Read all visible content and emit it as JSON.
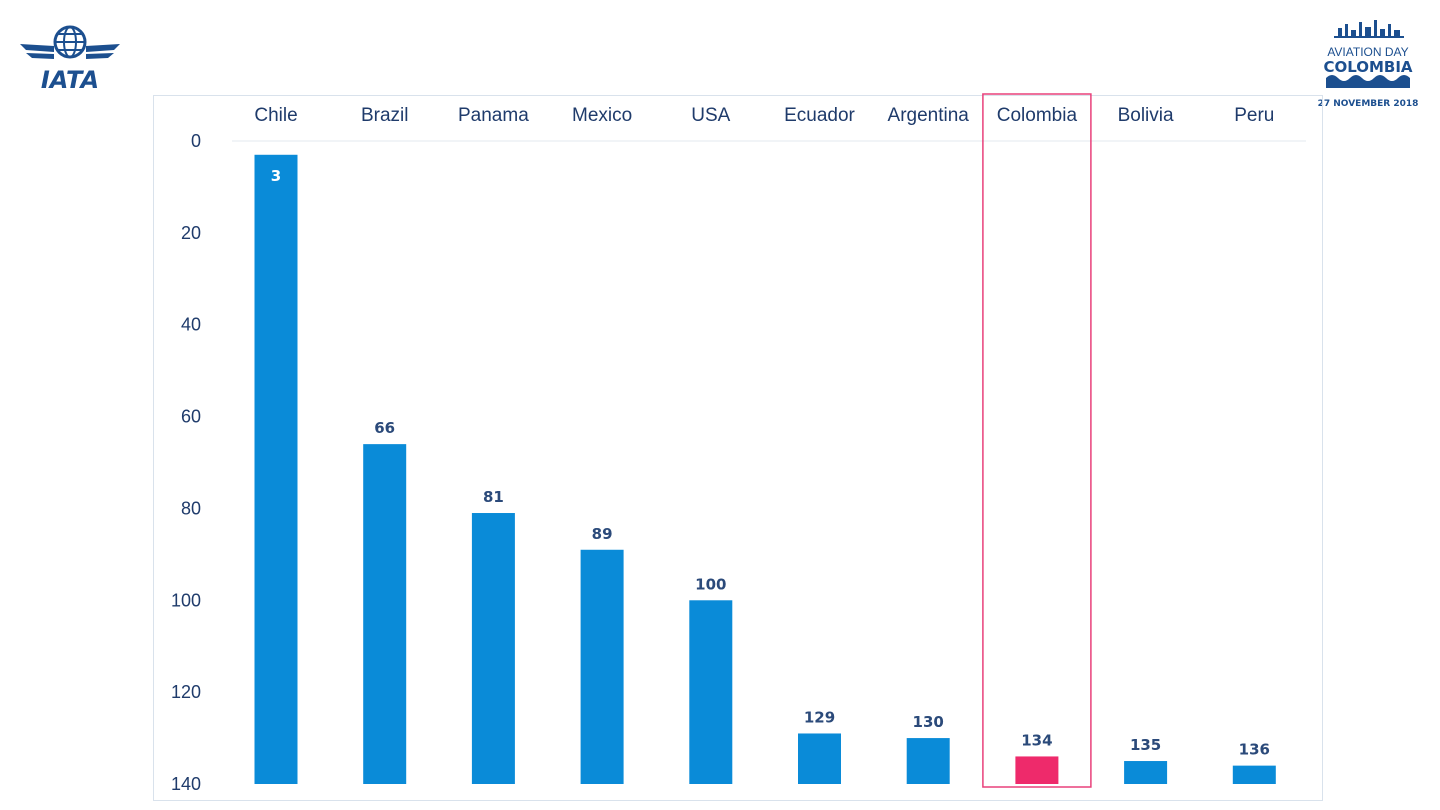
{
  "branding": {
    "left_logo_text": "IATA",
    "right_logo_line1": "AVIATION DAY",
    "right_logo_line2": "COLOMBIA",
    "right_logo_line3": "27 NOVEMBER 2018"
  },
  "colors": {
    "bar": "#0a8bd8",
    "highlight_bar": "#ee2a6b",
    "highlight_box": "#e8407a",
    "text": "#1f3b6b",
    "logo_blue": "#1c4f8f"
  },
  "chart_data": {
    "type": "bar",
    "orientation": "vertical",
    "y_axis_inverted": true,
    "categories": [
      "Chile",
      "Brazil",
      "Panama",
      "Mexico",
      "USA",
      "Ecuador",
      "Argentina",
      "Colombia",
      "Bolivia",
      "Peru"
    ],
    "values": [
      3,
      66,
      81,
      89,
      100,
      129,
      130,
      134,
      135,
      136
    ],
    "highlight": "Colombia",
    "ylim": [
      0,
      140
    ],
    "yticks": [
      0,
      20,
      40,
      60,
      80,
      100,
      120,
      140
    ],
    "title": "",
    "xlabel": "",
    "ylabel": "",
    "grid": false,
    "legend": "none"
  }
}
